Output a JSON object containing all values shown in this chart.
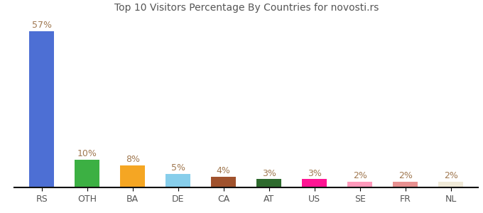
{
  "categories": [
    "RS",
    "OTH",
    "BA",
    "DE",
    "CA",
    "AT",
    "US",
    "SE",
    "FR",
    "NL"
  ],
  "values": [
    57,
    10,
    8,
    5,
    4,
    3,
    3,
    2,
    2,
    2
  ],
  "colors": [
    "#4d6fd4",
    "#3cb043",
    "#f5a623",
    "#87ceeb",
    "#a0522d",
    "#2d6a2d",
    "#ff1493",
    "#ff99bb",
    "#e89090",
    "#f0ead8"
  ],
  "title": "Top 10 Visitors Percentage By Countries for novosti.rs",
  "ylim": [
    0,
    63
  ],
  "background_color": "#ffffff",
  "label_color": "#a07850",
  "title_fontsize": 10,
  "tick_fontsize": 9,
  "value_fontsize": 9,
  "bar_width": 0.55
}
